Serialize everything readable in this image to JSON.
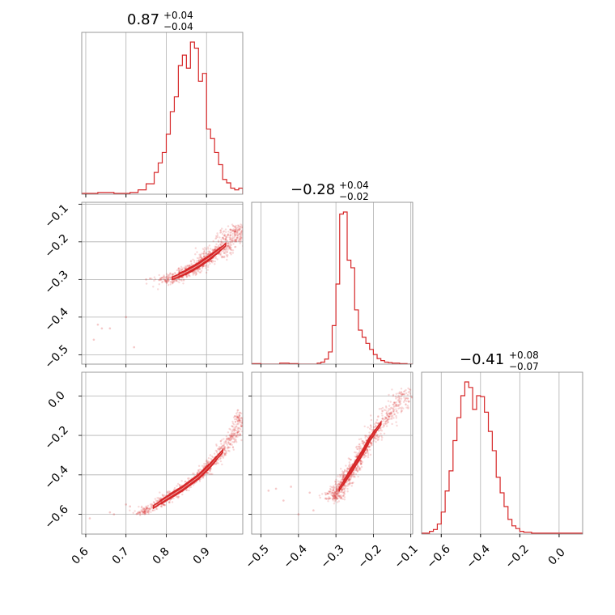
{
  "chart_data": {
    "type": "corner",
    "colors": {
      "series": "#d62728",
      "grid": "#b0b0b0",
      "frame": "#808080"
    },
    "grid": true,
    "parameters": [
      {
        "title_value": "0.87",
        "title_plus": "+0.04",
        "title_minus": "−0.04",
        "range": [
          0.59,
          0.99
        ]
      },
      {
        "title_value": "−0.28",
        "title_plus": "+0.04",
        "title_minus": "−0.02",
        "range": [
          -0.525,
          -0.095
        ]
      },
      {
        "title_value": "−0.41",
        "title_plus": "+0.08",
        "title_minus": "−0.07",
        "range": [
          -0.7,
          0.12
        ]
      }
    ],
    "axis_ticks": {
      "p0_x": [
        "0.6",
        "0.7",
        "0.8",
        "0.9"
      ],
      "p1_x": [
        "−0.5",
        "−0.4",
        "−0.3",
        "−0.2",
        "−0.1"
      ],
      "p2_x": [
        "−0.6",
        "−0.4",
        "−0.2",
        "0.0"
      ],
      "p1_y": [
        "−0.1",
        "−0.2",
        "−0.3",
        "−0.4",
        "−0.5"
      ],
      "p2_y": [
        "0.0",
        "−0.2",
        "−0.4",
        "−0.6"
      ]
    },
    "tick_values": {
      "p0": [
        0.6,
        0.7,
        0.8,
        0.9
      ],
      "p1": [
        -0.5,
        -0.4,
        -0.3,
        -0.2,
        -0.1
      ],
      "p2": [
        -0.6,
        -0.4,
        -0.2,
        0.0
      ]
    },
    "hist_p0": {
      "bin_edges": [
        0.59,
        0.61,
        0.63,
        0.65,
        0.67,
        0.69,
        0.71,
        0.73,
        0.75,
        0.77,
        0.78,
        0.79,
        0.8,
        0.81,
        0.82,
        0.83,
        0.84,
        0.85,
        0.86,
        0.87,
        0.88,
        0.89,
        0.9,
        0.91,
        0.92,
        0.93,
        0.94,
        0.95,
        0.96,
        0.97,
        0.98,
        0.99
      ],
      "counts": [
        1,
        1,
        2,
        2,
        1,
        1,
        2,
        5,
        12,
        25,
        36,
        48,
        69,
        95,
        112,
        148,
        160,
        145,
        175,
        168,
        130,
        139,
        75,
        64,
        48,
        34,
        17,
        13,
        7,
        5,
        7
      ]
    },
    "hist_p1": {
      "bin_edges": [
        -0.525,
        -0.5,
        -0.475,
        -0.45,
        -0.425,
        -0.4,
        -0.375,
        -0.35,
        -0.34,
        -0.33,
        -0.32,
        -0.31,
        -0.3,
        -0.29,
        -0.28,
        -0.27,
        -0.26,
        -0.25,
        -0.24,
        -0.23,
        -0.22,
        -0.21,
        -0.2,
        -0.19,
        -0.18,
        -0.17,
        -0.16,
        -0.15,
        -0.13,
        -0.11,
        -0.095
      ],
      "counts": [
        1,
        0,
        0,
        2,
        1,
        0,
        0,
        2,
        4,
        10,
        24,
        76,
        158,
        296,
        300,
        205,
        190,
        107,
        67,
        53,
        41,
        29,
        19,
        11,
        7,
        4,
        3,
        2,
        1,
        0
      ]
    },
    "hist_p2": {
      "bin_edges": [
        -0.7,
        -0.66,
        -0.64,
        -0.62,
        -0.6,
        -0.58,
        -0.56,
        -0.54,
        -0.52,
        -0.5,
        -0.48,
        -0.46,
        -0.44,
        -0.42,
        -0.4,
        -0.38,
        -0.36,
        -0.34,
        -0.32,
        -0.3,
        -0.28,
        -0.26,
        -0.24,
        -0.22,
        -0.2,
        -0.18,
        -0.16,
        -0.14,
        -0.1,
        -0.05,
        0.0,
        0.05,
        0.12
      ],
      "counts": [
        1,
        3,
        5,
        11,
        24,
        47,
        69,
        102,
        127,
        151,
        166,
        160,
        136,
        151,
        150,
        133,
        112,
        91,
        62,
        45,
        30,
        16,
        9,
        6,
        3,
        2,
        2,
        1,
        1,
        1,
        1,
        1
      ]
    },
    "scatter_p1_vs_p0": {
      "ridge": [
        [
          0.79,
          -0.305
        ],
        [
          0.82,
          -0.295
        ],
        [
          0.85,
          -0.28
        ],
        [
          0.88,
          -0.262
        ],
        [
          0.91,
          -0.24
        ],
        [
          0.94,
          -0.215
        ],
        [
          0.97,
          -0.185
        ],
        [
          0.99,
          -0.16
        ]
      ],
      "outliers": [
        [
          0.63,
          -0.42
        ],
        [
          0.64,
          -0.43
        ],
        [
          0.66,
          -0.43
        ],
        [
          0.7,
          -0.4
        ],
        [
          0.72,
          -0.48
        ],
        [
          0.62,
          -0.46
        ],
        [
          0.75,
          -0.3
        ]
      ]
    },
    "scatter_p2_vs_p0": {
      "ridge": [
        [
          0.73,
          -0.6
        ],
        [
          0.77,
          -0.56
        ],
        [
          0.8,
          -0.52
        ],
        [
          0.84,
          -0.47
        ],
        [
          0.88,
          -0.41
        ],
        [
          0.91,
          -0.35
        ],
        [
          0.94,
          -0.28
        ],
        [
          0.97,
          -0.19
        ],
        [
          0.99,
          -0.08
        ]
      ],
      "outliers": [
        [
          0.61,
          -0.62
        ],
        [
          0.66,
          -0.59
        ],
        [
          0.67,
          -0.6
        ],
        [
          0.7,
          -0.55
        ],
        [
          0.71,
          -0.56
        ]
      ]
    },
    "scatter_p2_vs_p1": {
      "ridge": [
        [
          -0.31,
          -0.52
        ],
        [
          -0.29,
          -0.47
        ],
        [
          -0.27,
          -0.41
        ],
        [
          -0.25,
          -0.35
        ],
        [
          -0.23,
          -0.29
        ],
        [
          -0.21,
          -0.22
        ],
        [
          -0.18,
          -0.14
        ],
        [
          -0.14,
          -0.06
        ],
        [
          -0.11,
          0.03
        ]
      ],
      "outliers": [
        [
          -0.48,
          -0.48
        ],
        [
          -0.46,
          -0.47
        ],
        [
          -0.44,
          -0.53
        ],
        [
          -0.42,
          -0.46
        ],
        [
          -0.4,
          -0.6
        ],
        [
          -0.37,
          -0.49
        ],
        [
          -0.36,
          -0.58
        ]
      ]
    }
  }
}
